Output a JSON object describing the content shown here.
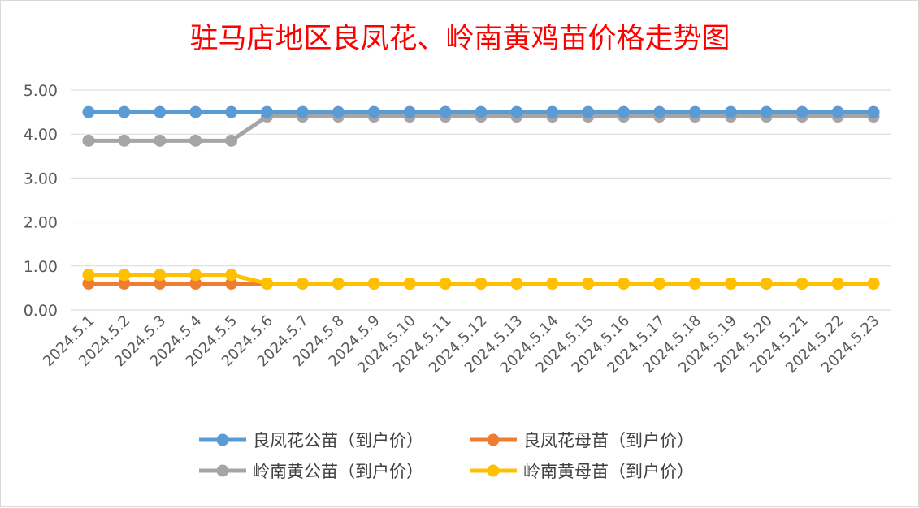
{
  "chart_data": {
    "type": "line",
    "title": "驻马店地区良凤花、岭南黄鸡苗价格走势图",
    "title_color": "#ff0000",
    "xlabel": "",
    "ylabel": "",
    "ylim": [
      0,
      5
    ],
    "y_ticks": [
      "0.00",
      "1.00",
      "2.00",
      "3.00",
      "4.00",
      "5.00"
    ],
    "grid": "horizontal",
    "legend_position": "bottom",
    "categories": [
      "2024.5.1",
      "2024.5.2",
      "2024.5.3",
      "2024.5.4",
      "2024.5.5",
      "2024.5.6",
      "2024.5.7",
      "2024.5.8",
      "2024.5.9",
      "2024.5.10",
      "2024.5.11",
      "2024.5.12",
      "2024.5.13",
      "2024.5.14",
      "2024.5.15",
      "2024.5.16",
      "2024.5.17",
      "2024.5.18",
      "2024.5.19",
      "2024.5.20",
      "2024.5.21",
      "2024.5.22",
      "2024.5.23"
    ],
    "series": [
      {
        "name": "良凤花公苗（到户价）",
        "color": "#5b9bd5",
        "values": [
          4.5,
          4.5,
          4.5,
          4.5,
          4.5,
          4.5,
          4.5,
          4.5,
          4.5,
          4.5,
          4.5,
          4.5,
          4.5,
          4.5,
          4.5,
          4.5,
          4.5,
          4.5,
          4.5,
          4.5,
          4.5,
          4.5,
          4.5
        ]
      },
      {
        "name": "良凤花母苗（到户价）",
        "color": "#ed7d31",
        "values": [
          0.6,
          0.6,
          0.6,
          0.6,
          0.6,
          0.6,
          0.6,
          0.6,
          0.6,
          0.6,
          0.6,
          0.6,
          0.6,
          0.6,
          0.6,
          0.6,
          0.6,
          0.6,
          0.6,
          0.6,
          0.6,
          0.6,
          0.6
        ]
      },
      {
        "name": "岭南黄公苗（到户价）",
        "color": "#a5a5a5",
        "values": [
          3.85,
          3.85,
          3.85,
          3.85,
          3.85,
          4.4,
          4.4,
          4.4,
          4.4,
          4.4,
          4.4,
          4.4,
          4.4,
          4.4,
          4.4,
          4.4,
          4.4,
          4.4,
          4.4,
          4.4,
          4.4,
          4.4,
          4.4
        ]
      },
      {
        "name": "岭南黄母苗（到户价）",
        "color": "#ffc000",
        "values": [
          0.8,
          0.8,
          0.8,
          0.8,
          0.8,
          0.6,
          0.6,
          0.6,
          0.6,
          0.6,
          0.6,
          0.6,
          0.6,
          0.6,
          0.6,
          0.6,
          0.6,
          0.6,
          0.6,
          0.6,
          0.6,
          0.6,
          0.6
        ]
      }
    ]
  }
}
